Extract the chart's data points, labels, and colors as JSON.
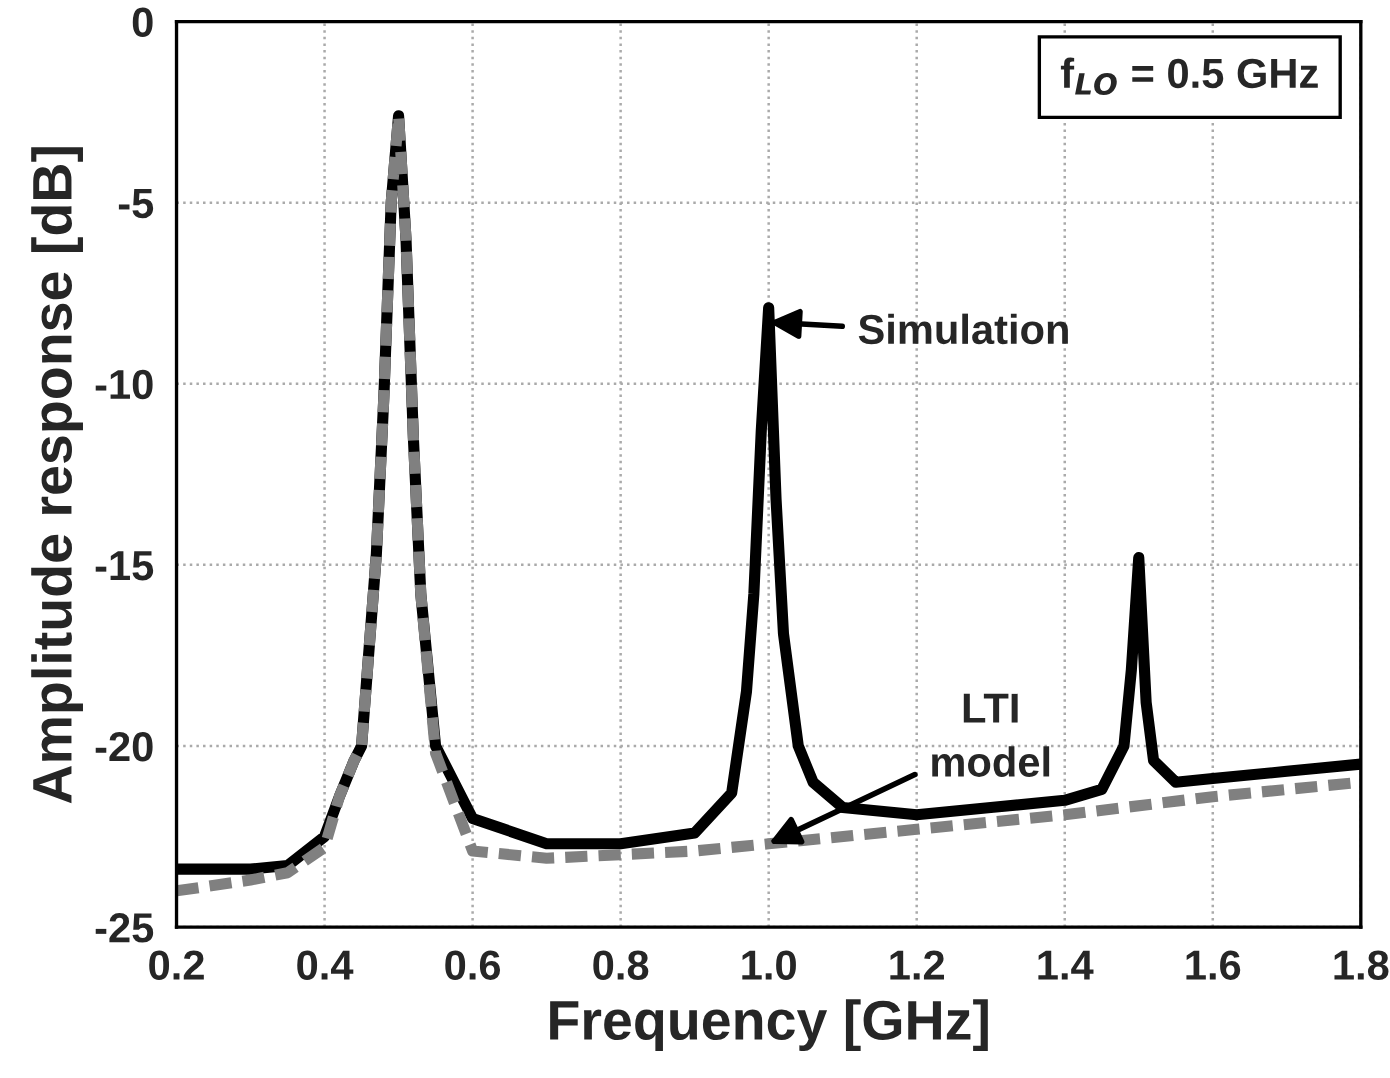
{
  "chart_data": {
    "type": "line",
    "xlabel": "Frequency [GHz]",
    "ylabel": "Amplitude response [dB]",
    "series": [
      {
        "color": "#000000",
        "line_style": "solid",
        "x": [
          0.2,
          0.3,
          0.35,
          0.4,
          0.42,
          0.44,
          0.45,
          0.47,
          0.48,
          0.49,
          0.5,
          0.51,
          0.52,
          0.53,
          0.55,
          0.6,
          0.7,
          0.8,
          0.9,
          0.95,
          0.97,
          0.98,
          0.99,
          1.0,
          1.01,
          1.02,
          1.04,
          1.06,
          1.1,
          1.2,
          1.3,
          1.4,
          1.45,
          1.48,
          1.49,
          1.5,
          1.51,
          1.52,
          1.55,
          1.6,
          1.7,
          1.8
        ],
        "values": [
          -23.4,
          -23.4,
          -23.3,
          -22.5,
          -21.4,
          -20.4,
          -20.0,
          -14.7,
          -10.4,
          -5.0,
          -2.6,
          -6.0,
          -11.5,
          -15.8,
          -20.0,
          -22.0,
          -22.7,
          -22.7,
          -22.4,
          -21.3,
          -18.5,
          -15.8,
          -11.3,
          -7.9,
          -13.2,
          -16.9,
          -20.0,
          -21.0,
          -21.7,
          -21.9,
          -21.7,
          -21.5,
          -21.2,
          -20.0,
          -17.9,
          -14.8,
          -18.8,
          -20.4,
          -21.0,
          -20.9,
          -20.7,
          -20.5
        ]
      },
      {
        "color": "#808080",
        "line_style": "dashed",
        "x": [
          0.2,
          0.3,
          0.35,
          0.4,
          0.42,
          0.44,
          0.45,
          0.47,
          0.48,
          0.49,
          0.5,
          0.51,
          0.52,
          0.53,
          0.55,
          0.6,
          0.7,
          0.8,
          0.9,
          1.0,
          1.2,
          1.4,
          1.6,
          1.8
        ],
        "values": [
          -24.0,
          -23.7,
          -23.5,
          -22.8,
          -21.4,
          -20.4,
          -20.0,
          -14.7,
          -10.4,
          -5.0,
          -2.6,
          -6.0,
          -11.5,
          -15.8,
          -20.2,
          -22.9,
          -23.1,
          -23.0,
          -22.9,
          -22.7,
          -22.3,
          -21.9,
          -21.4,
          -21.0
        ]
      }
    ],
    "xlim": [
      0.2,
      1.8
    ],
    "xticks": [
      0.2,
      0.4,
      0.6,
      0.8,
      {
        "value": 1.0,
        "label": "1.0"
      },
      1.2,
      1.4,
      1.6,
      1.8
    ],
    "ylim": [
      -25,
      0
    ],
    "yticks": [
      -25,
      -20,
      -15,
      -10,
      -5,
      0
    ],
    "grid": true,
    "annotations": [
      {
        "text": "Simulation",
        "x": 1.0,
        "y": -8.3
      },
      {
        "text": "LTI\nmodel",
        "x": 1.0,
        "y": -22.7
      },
      "f$_{LO}$ = 0.5 GHz"
    ]
  }
}
